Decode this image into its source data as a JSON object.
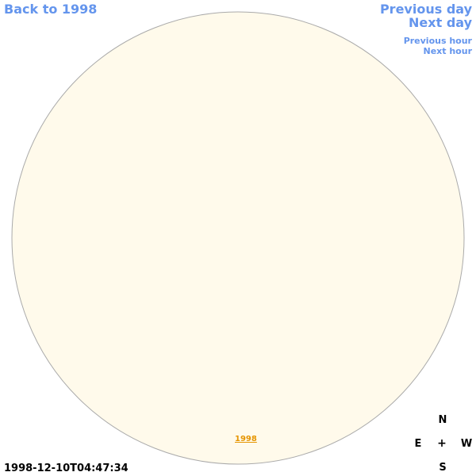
{
  "nav": {
    "back_label": "Back to 1998",
    "previous_day": "Previous day",
    "next_day": "Next day",
    "previous_hour": "Previous hour",
    "next_hour": "Next hour"
  },
  "compass": {
    "north": "N",
    "east": "E",
    "west": "W",
    "south": "S",
    "center": "+"
  },
  "timestamp": "1998-12-10T04:47:34",
  "year_link": "1998",
  "colors": {
    "disk_fill": "#fffaeb",
    "disk_border": "#aaaaaa",
    "contour": "#e69500",
    "link": "#6495ed"
  }
}
